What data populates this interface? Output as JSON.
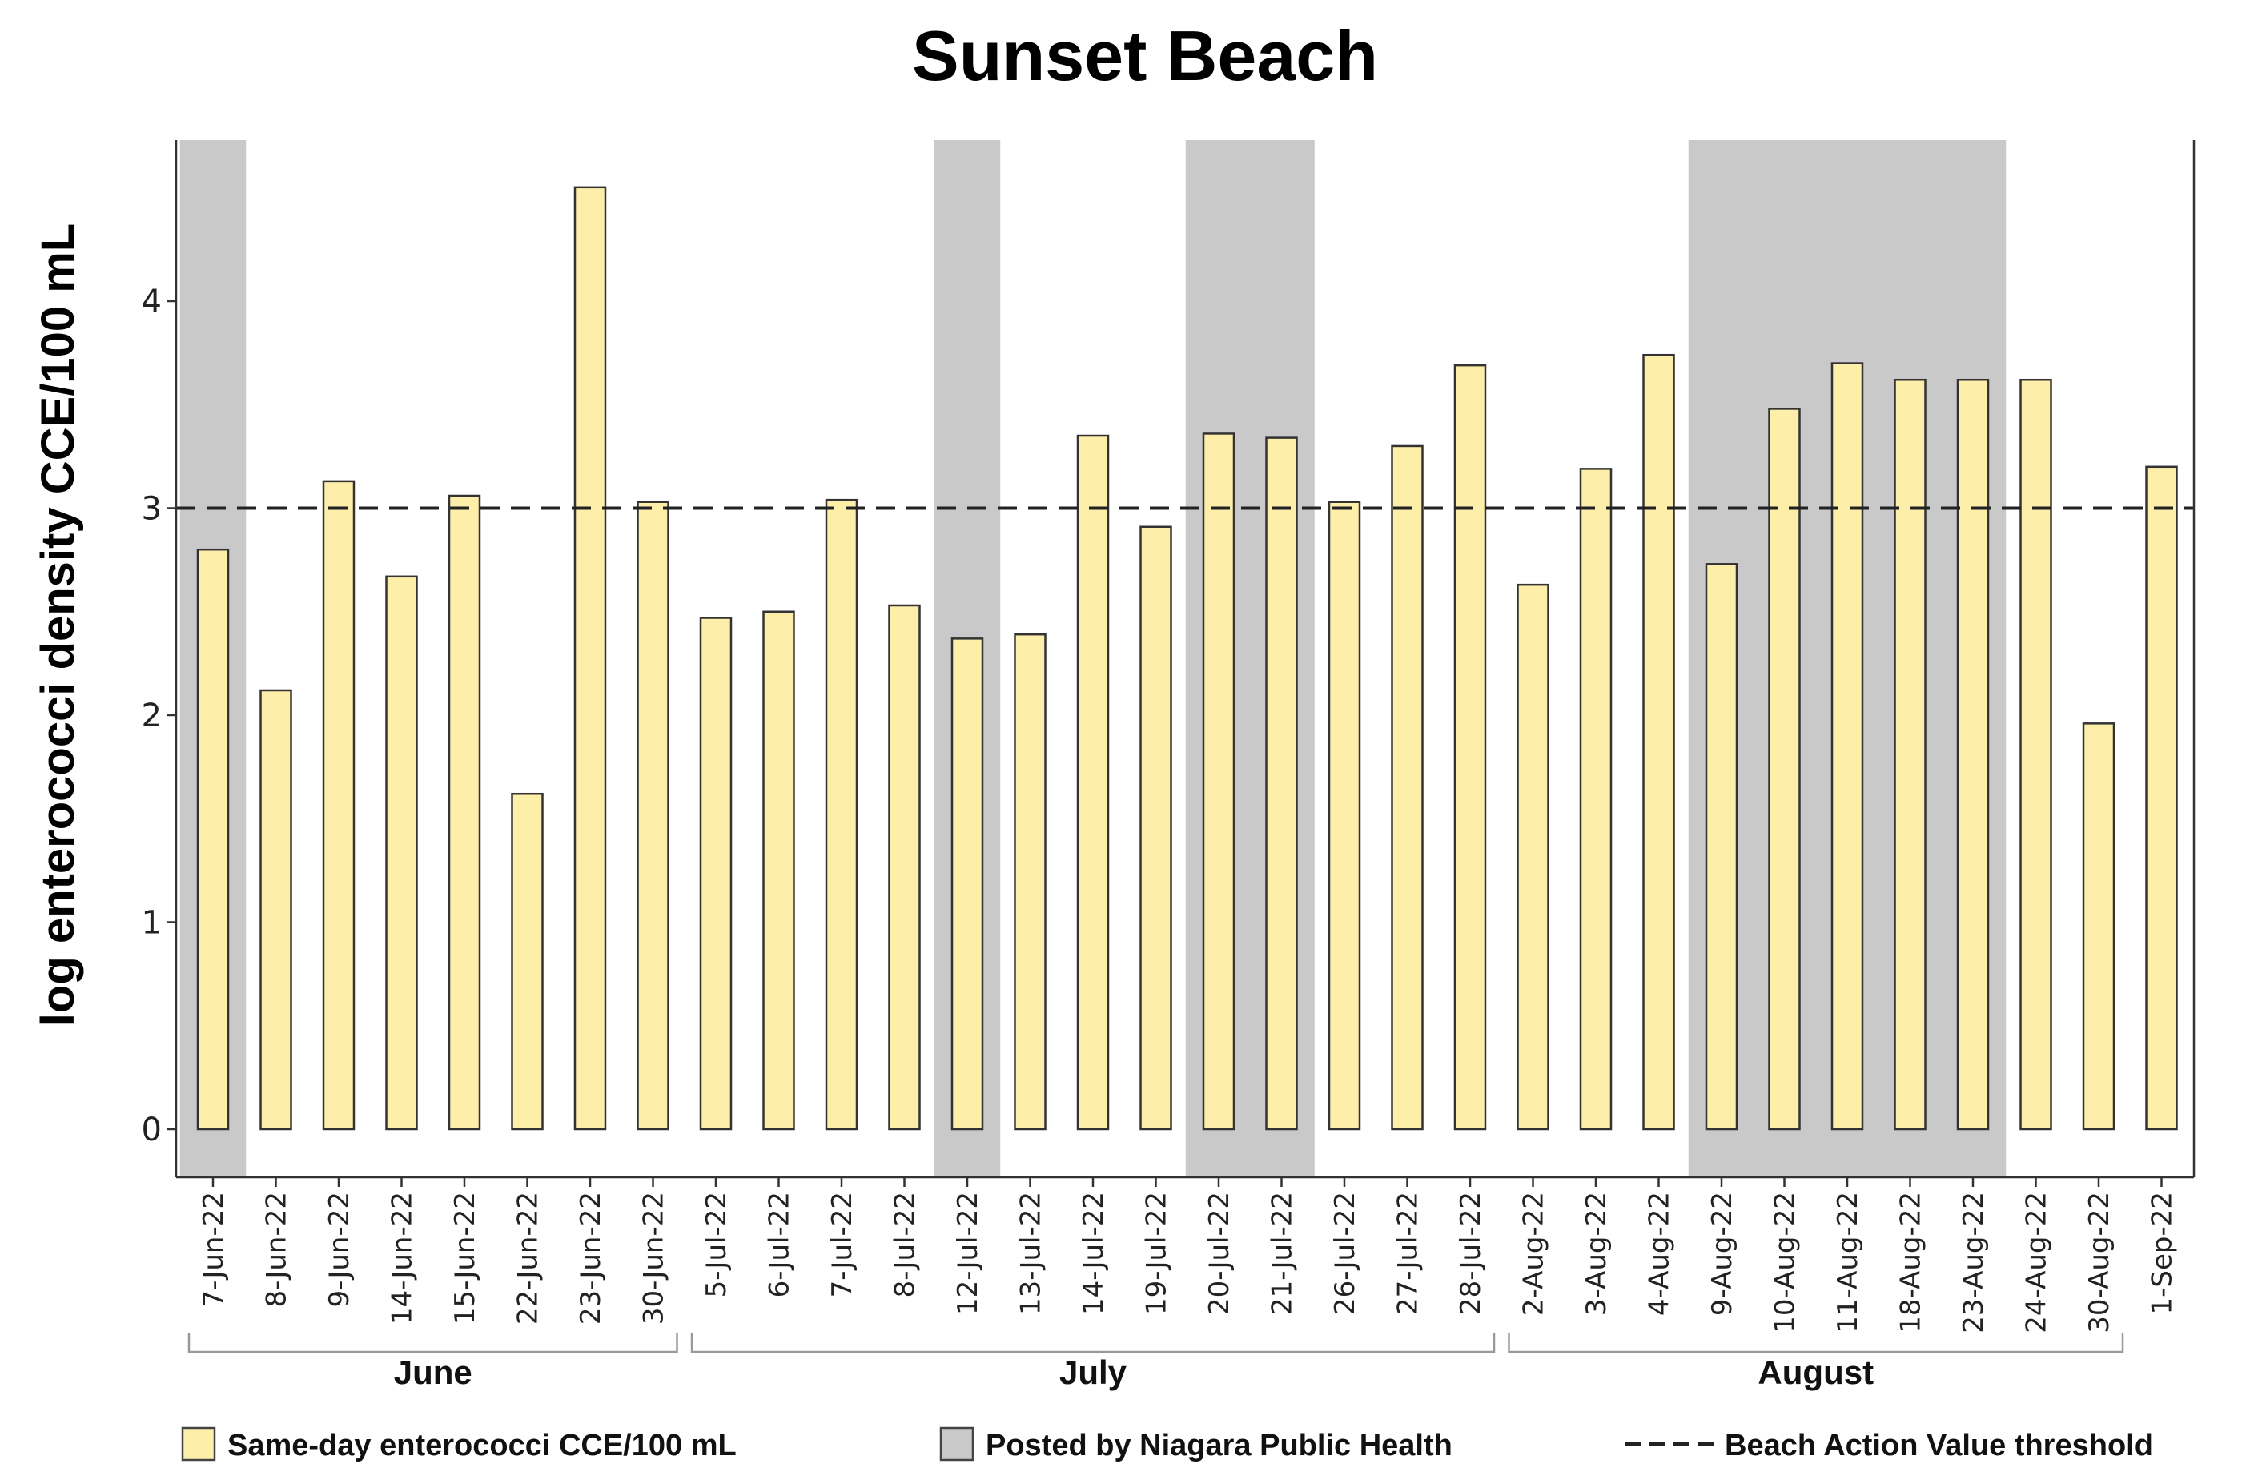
{
  "chart_data": {
    "type": "bar",
    "title": "Sunset Beach",
    "xlabel": "",
    "ylabel": "log enterococci density CCE/100 mL",
    "ylim": [
      0,
      4.7
    ],
    "yticks": [
      0,
      1,
      2,
      3,
      4
    ],
    "grid": false,
    "legend_position": "bottom",
    "colors": {
      "bar_fill": "#fdeeaa",
      "bar_stroke": "#333333",
      "posted_shade": "#c9c9c9",
      "threshold_line": "#222222"
    },
    "categories": [
      "7-Jun-22",
      "8-Jun-22",
      "9-Jun-22",
      "14-Jun-22",
      "15-Jun-22",
      "22-Jun-22",
      "23-Jun-22",
      "30-Jun-22",
      "5-Jul-22",
      "6-Jul-22",
      "7-Jul-22",
      "8-Jul-22",
      "12-Jul-22",
      "13-Jul-22",
      "14-Jul-22",
      "19-Jul-22",
      "20-Jul-22",
      "21-Jul-22",
      "26-Jul-22",
      "27-Jul-22",
      "28-Jul-22",
      "2-Aug-22",
      "3-Aug-22",
      "4-Aug-22",
      "9-Aug-22",
      "10-Aug-22",
      "11-Aug-22",
      "18-Aug-22",
      "23-Aug-22",
      "24-Aug-22",
      "30-Aug-22",
      "1-Sep-22"
    ],
    "series": [
      {
        "name": "Same-day enterococci CCE/100 mL",
        "values": [
          2.8,
          2.12,
          3.13,
          2.67,
          3.06,
          1.62,
          4.55,
          3.03,
          2.47,
          2.5,
          3.04,
          2.53,
          2.37,
          2.39,
          3.35,
          2.91,
          3.36,
          3.34,
          3.03,
          3.3,
          3.69,
          2.63,
          3.19,
          3.74,
          2.73,
          3.48,
          3.7,
          3.62,
          3.62,
          3.62,
          1.96,
          3.2
        ]
      }
    ],
    "posted": [
      true,
      false,
      false,
      false,
      false,
      false,
      false,
      false,
      false,
      false,
      false,
      false,
      true,
      false,
      false,
      false,
      true,
      true,
      false,
      false,
      false,
      false,
      false,
      false,
      true,
      true,
      true,
      true,
      true,
      false,
      false,
      false
    ],
    "threshold": 3,
    "month_groups": [
      {
        "label": "June",
        "start": 0,
        "end": 7
      },
      {
        "label": "July",
        "start": 8,
        "end": 20
      },
      {
        "label": "August",
        "start": 21,
        "end": 30
      }
    ],
    "legend": [
      {
        "label": "Same-day enterococci CCE/100 mL",
        "kind": "swatch-yellow"
      },
      {
        "label": "Posted by Niagara Public Health",
        "kind": "swatch-gray"
      },
      {
        "label": "Beach Action Value threshold",
        "kind": "dashed-line"
      }
    ]
  }
}
